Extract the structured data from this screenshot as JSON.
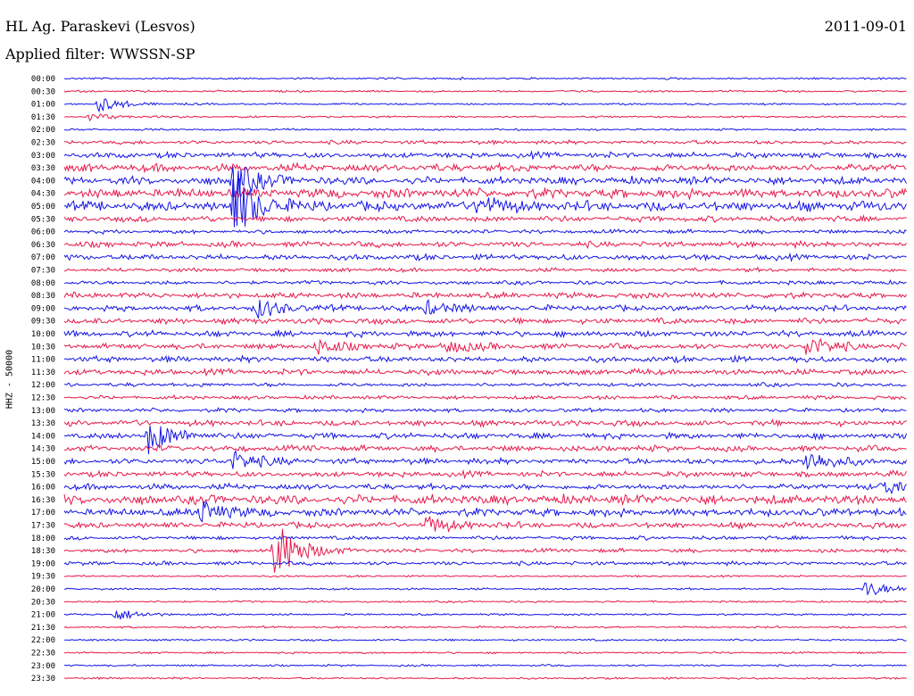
{
  "header": {
    "station": "HL Ag. Paraskevi (Lesvos)",
    "filter": "Applied filter: WWSSN-SP",
    "date": "2011-09-01",
    "channel_label": "HHZ - 50000"
  },
  "colors": {
    "trace_a": "#1414e6",
    "trace_b": "#e6194b"
  },
  "chart_data": {
    "type": "line",
    "title": "HL Ag. Paraskevi (Lesvos)",
    "subtitle": "Applied filter: WWSSN-SP",
    "ylabel": "HHZ - 50000",
    "xlabel": "",
    "grid": false,
    "row_labels": [
      "00:00",
      "00:30",
      "01:00",
      "01:30",
      "02:00",
      "02:30",
      "03:00",
      "03:30",
      "04:00",
      "04:30",
      "05:00",
      "05:30",
      "06:00",
      "06:30",
      "07:00",
      "07:30",
      "08:00",
      "08:30",
      "09:00",
      "09:30",
      "10:00",
      "10:30",
      "11:00",
      "11:30",
      "12:00",
      "12:30",
      "13:00",
      "13:30",
      "14:00",
      "14:30",
      "15:00",
      "15:30",
      "16:00",
      "16:30",
      "17:00",
      "17:30",
      "18:00",
      "18:30",
      "19:00",
      "19:30",
      "20:00",
      "20:30",
      "21:00",
      "21:30",
      "22:00",
      "22:30",
      "23:00",
      "23:30"
    ],
    "row_colors": [
      "trace_a",
      "trace_b"
    ],
    "noise_levels": [
      1,
      1,
      1,
      1,
      1,
      2,
      3,
      4,
      4,
      5,
      5,
      3,
      2,
      3,
      3,
      2,
      2,
      3,
      3,
      3,
      3,
      3,
      3,
      3,
      2,
      2,
      2,
      3,
      3,
      3,
      3,
      3,
      3,
      5,
      4,
      3,
      2,
      2,
      2,
      1,
      1,
      1,
      1,
      1,
      1,
      1,
      1,
      1
    ],
    "events": [
      {
        "row": 2,
        "x": 0.04,
        "amplitude": 9
      },
      {
        "row": 3,
        "x": 0.03,
        "amplitude": 4
      },
      {
        "row": 8,
        "x": 0.2,
        "amplitude": 22
      },
      {
        "row": 10,
        "x": 0.2,
        "amplitude": 40
      },
      {
        "row": 10,
        "x": 0.49,
        "amplitude": 12
      },
      {
        "row": 18,
        "x": 0.23,
        "amplitude": 10
      },
      {
        "row": 18,
        "x": 0.43,
        "amplitude": 8
      },
      {
        "row": 21,
        "x": 0.3,
        "amplitude": 8
      },
      {
        "row": 21,
        "x": 0.45,
        "amplitude": 8
      },
      {
        "row": 21,
        "x": 0.88,
        "amplitude": 12
      },
      {
        "row": 28,
        "x": 0.1,
        "amplitude": 20
      },
      {
        "row": 30,
        "x": 0.2,
        "amplitude": 12
      },
      {
        "row": 30,
        "x": 0.88,
        "amplitude": 14
      },
      {
        "row": 32,
        "x": 0.97,
        "amplitude": 8
      },
      {
        "row": 34,
        "x": 0.16,
        "amplitude": 14
      },
      {
        "row": 35,
        "x": 0.43,
        "amplitude": 10
      },
      {
        "row": 37,
        "x": 0.25,
        "amplitude": 36
      },
      {
        "row": 40,
        "x": 0.95,
        "amplitude": 10
      },
      {
        "row": 42,
        "x": 0.06,
        "amplitude": 7
      }
    ]
  }
}
